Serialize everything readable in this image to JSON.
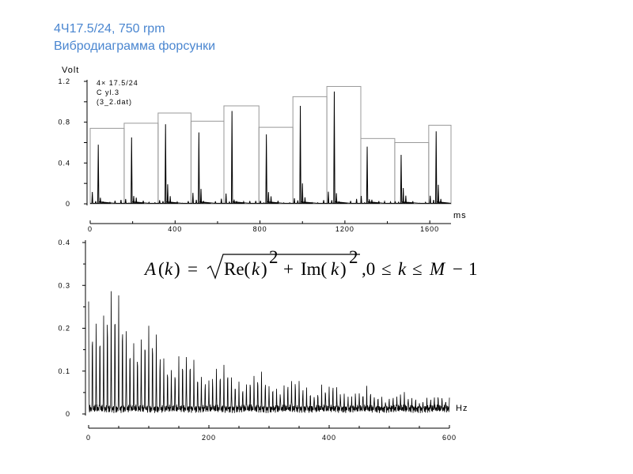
{
  "header": {
    "title": "4Ч17.5/24, 750 rpm",
    "subtitle": "Вибродиаграмма форсунки"
  },
  "chart_data": [
    {
      "type": "line",
      "name": "vibrodiagram",
      "ylabel": "Volt",
      "xlabel": "ms",
      "xlim": [
        0,
        1700
      ],
      "ylim": [
        0,
        1.2
      ],
      "x_ticks": [
        "0",
        "400",
        "800",
        "1200",
        "1600"
      ],
      "y_ticks": [
        "0",
        "0.4",
        "0.8",
        "1.2"
      ],
      "annotation": [
        "4× 17.5/24",
        "C yl.3",
        "(3_2.dat)"
      ],
      "cycle_windows": [
        {
          "x_start": 0,
          "x_end": 160,
          "peak": 0.74
        },
        {
          "x_start": 160,
          "x_end": 320,
          "peak": 0.79
        },
        {
          "x_start": 320,
          "x_end": 475,
          "peak": 0.89
        },
        {
          "x_start": 475,
          "x_end": 630,
          "peak": 0.81
        },
        {
          "x_start": 630,
          "x_end": 795,
          "peak": 0.96
        },
        {
          "x_start": 795,
          "x_end": 955,
          "peak": 0.75
        },
        {
          "x_start": 955,
          "x_end": 1115,
          "peak": 1.05
        },
        {
          "x_start": 1115,
          "x_end": 1275,
          "peak": 1.15
        },
        {
          "x_start": 1275,
          "x_end": 1435,
          "peak": 0.64
        },
        {
          "x_start": 1435,
          "x_end": 1595,
          "peak": 0.6
        },
        {
          "x_start": 1595,
          "x_end": 1700,
          "peak": 0.77
        }
      ],
      "spikes": [
        {
          "x": 38,
          "y": 0.58
        },
        {
          "x": 195,
          "y": 0.65
        },
        {
          "x": 355,
          "y": 0.78
        },
        {
          "x": 512,
          "y": 0.7
        },
        {
          "x": 668,
          "y": 0.91
        },
        {
          "x": 830,
          "y": 0.68
        },
        {
          "x": 990,
          "y": 0.96
        },
        {
          "x": 1150,
          "y": 1.1
        },
        {
          "x": 1305,
          "y": 0.56
        },
        {
          "x": 1465,
          "y": 0.48
        },
        {
          "x": 1630,
          "y": 0.71
        }
      ]
    },
    {
      "type": "line",
      "name": "amplitude_spectrum",
      "xlabel": "Hz",
      "xlim": [
        0,
        600
      ],
      "ylim": [
        0,
        0.4
      ],
      "x_ticks": [
        "0",
        "200",
        "400",
        "600"
      ],
      "y_ticks": [
        "0",
        "0.1",
        "0.2",
        "0.3",
        "0.4"
      ],
      "formula": "A(k) = √(Re(k)² + Im(k)²), 0 ≤ k ≤ M − 1",
      "harmonic_spacing_hz": 6.25,
      "envelope_points": [
        {
          "x": 0,
          "y": 0.32
        },
        {
          "x": 25,
          "y": 0.32
        },
        {
          "x": 50,
          "y": 0.28
        },
        {
          "x": 100,
          "y": 0.21
        },
        {
          "x": 150,
          "y": 0.15
        },
        {
          "x": 200,
          "y": 0.12
        },
        {
          "x": 300,
          "y": 0.09
        },
        {
          "x": 400,
          "y": 0.07
        },
        {
          "x": 500,
          "y": 0.05
        },
        {
          "x": 600,
          "y": 0.04
        }
      ]
    }
  ]
}
